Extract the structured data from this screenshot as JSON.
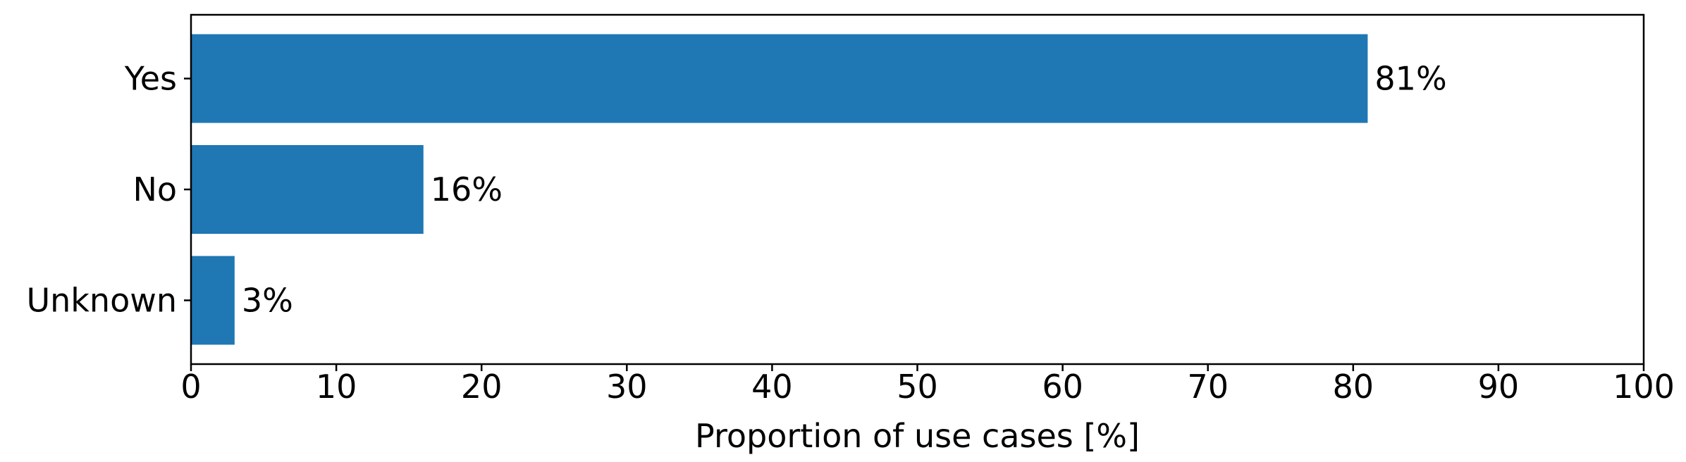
{
  "chart_data": {
    "type": "bar",
    "orientation": "horizontal",
    "categories": [
      "Yes",
      "No",
      "Unknown"
    ],
    "values": [
      81,
      16,
      3
    ],
    "value_labels": [
      "81%",
      "16%",
      "3%"
    ],
    "xlabel": "Proportion of use cases [%]",
    "ylabel": "",
    "xlim": [
      0,
      100
    ],
    "xticks": [
      0,
      10,
      20,
      30,
      40,
      50,
      60,
      70,
      80,
      90,
      100
    ],
    "xtick_labels": [
      "0",
      "10",
      "20",
      "30",
      "40",
      "50",
      "60",
      "70",
      "80",
      "90",
      "100"
    ],
    "grid": false,
    "bar_color": "#1f77b4"
  }
}
